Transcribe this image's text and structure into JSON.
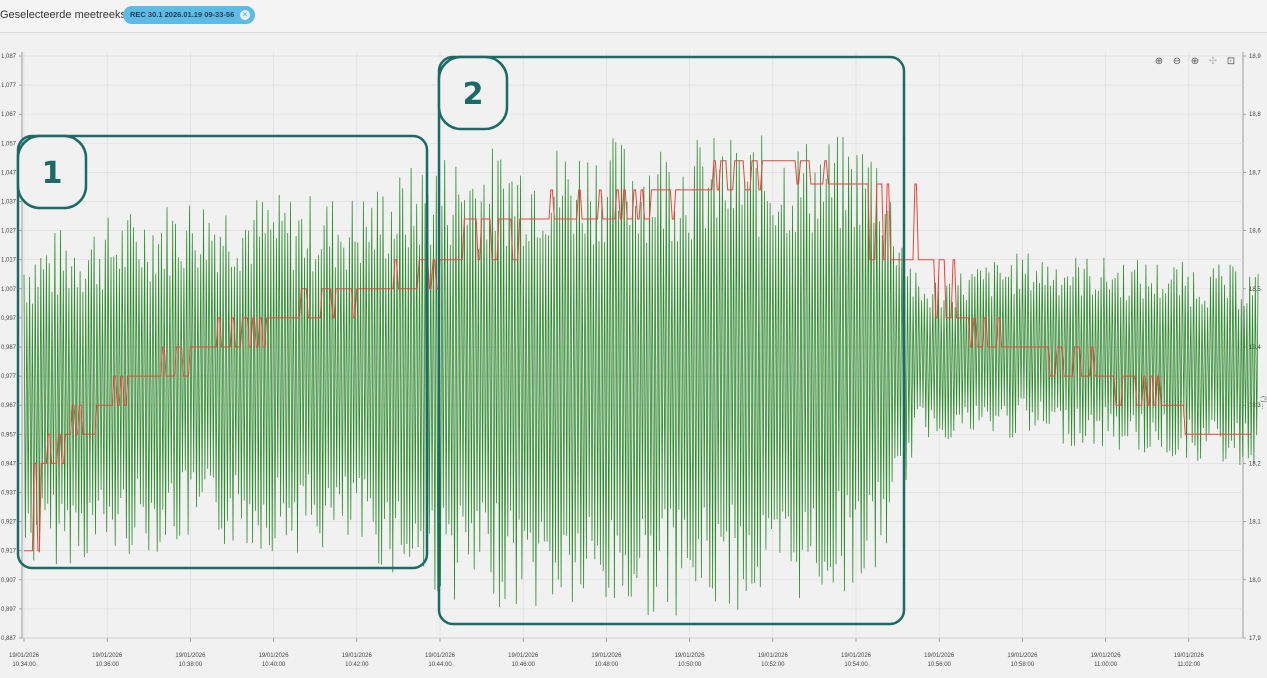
{
  "header": {
    "label": "Geselecteerde meetreeksen:",
    "series_chip": "REC 30.1 2026.01.19 09-33-56",
    "chip_close": "×"
  },
  "toolbar": {
    "zoom_in": "⊕",
    "zoom_out": "⊖",
    "zoom_area": "⊕",
    "pan": "✣",
    "reset": "⊡"
  },
  "right_axis_label": "(°) ...",
  "annotations": [
    {
      "label": "1"
    },
    {
      "label": "2"
    }
  ],
  "colors": {
    "green_series": "#2e8b2e",
    "red_series": "#e8453c",
    "annotation": "#1a6b68",
    "chip": "#5dbbe6"
  },
  "chart_data": {
    "type": "line",
    "left_axis": {
      "ticks": [
        "1,087",
        "1,077",
        "1,067",
        "1,057",
        "1,047",
        "1,037",
        "1,027",
        "1,017",
        "1,007",
        "0,997",
        "0,987",
        "0,977",
        "0,967",
        "0,957",
        "0,947",
        "0,937",
        "0,927",
        "0,917",
        "0,907",
        "0,897",
        "0,887"
      ],
      "ylim": [
        0.887,
        1.087
      ]
    },
    "right_axis": {
      "ticks": [
        "18,9",
        "18,8",
        "18,7",
        "18,6",
        "18,5",
        "18,4",
        "18,3",
        "18,2",
        "18,1",
        "18,0",
        "17,9"
      ],
      "ylim": [
        17.9,
        18.9
      ]
    },
    "x_ticks": [
      {
        "date": "19/01/2026",
        "time": "10:34:00"
      },
      {
        "date": "19/01/2026",
        "time": "10:36:00"
      },
      {
        "date": "19/01/2026",
        "time": "10:38:00"
      },
      {
        "date": "19/01/2026",
        "time": "10:40:00"
      },
      {
        "date": "19/01/2026",
        "time": "10:42:00"
      },
      {
        "date": "19/01/2026",
        "time": "10:44:00"
      },
      {
        "date": "19/01/2026",
        "time": "10:46:00"
      },
      {
        "date": "19/01/2026",
        "time": "10:48:00"
      },
      {
        "date": "19/01/2026",
        "time": "10:50:00"
      },
      {
        "date": "19/01/2026",
        "time": "10:52:00"
      },
      {
        "date": "19/01/2026",
        "time": "10:54:00"
      },
      {
        "date": "19/01/2026",
        "time": "10:56:00"
      },
      {
        "date": "19/01/2026",
        "time": "10:58:00"
      },
      {
        "date": "19/01/2026",
        "time": "11:00:00"
      },
      {
        "date": "19/01/2026",
        "time": "11:02:00"
      }
    ],
    "grid": true,
    "series": [
      {
        "color": "green",
        "axis": "left",
        "description_points": [
          {
            "t": "10:34:00",
            "min": 0.91,
            "max": 1.025
          },
          {
            "t": "10:38:00",
            "min": 0.918,
            "max": 1.04
          },
          {
            "t": "10:42:00",
            "min": 0.915,
            "max": 1.04
          },
          {
            "t": "10:44:00",
            "min": 0.9,
            "max": 1.055
          },
          {
            "t": "10:48:00",
            "min": 0.893,
            "max": 1.06
          },
          {
            "t": "10:52:00",
            "min": 0.897,
            "max": 1.06
          },
          {
            "t": "10:54:30",
            "min": 0.905,
            "max": 1.06
          },
          {
            "t": "10:55:30",
            "min": 0.955,
            "max": 1.01
          },
          {
            "t": "10:58:00",
            "min": 0.955,
            "max": 1.02
          },
          {
            "t": "11:03:30",
            "min": 0.945,
            "max": 1.015
          }
        ]
      },
      {
        "color": "red",
        "axis": "right",
        "steps": [
          {
            "t": "10:34:00",
            "v": 18.05
          },
          {
            "t": "10:34:30",
            "v": 18.2
          },
          {
            "t": "10:35:00",
            "v": 18.25
          },
          {
            "t": "10:36:00",
            "v": 18.3
          },
          {
            "t": "10:37:00",
            "v": 18.35
          },
          {
            "t": "10:38:00",
            "v": 18.4
          },
          {
            "t": "10:40:00",
            "v": 18.45
          },
          {
            "t": "10:42:30",
            "v": 18.5
          },
          {
            "t": "10:44:00",
            "v": 18.55
          },
          {
            "t": "10:46:00",
            "v": 18.62
          },
          {
            "t": "10:50:00",
            "v": 18.67
          },
          {
            "t": "10:52:00",
            "v": 18.72
          },
          {
            "t": "10:54:00",
            "v": 18.68
          },
          {
            "t": "10:55:30",
            "v": 18.55
          },
          {
            "t": "10:56:30",
            "v": 18.45
          },
          {
            "t": "10:58:00",
            "v": 18.4
          },
          {
            "t": "11:00:00",
            "v": 18.35
          },
          {
            "t": "11:01:30",
            "v": 18.3
          },
          {
            "t": "11:02:30",
            "v": 18.25
          },
          {
            "t": "11:03:30",
            "v": 18.25
          }
        ]
      }
    ]
  }
}
